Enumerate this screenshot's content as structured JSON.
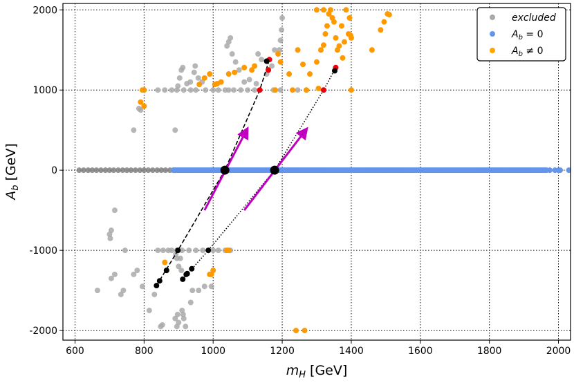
{
  "chart_data": {
    "type": "scatter",
    "xlabel_main": "m",
    "xlabel_sub": "H",
    "xlabel_unit": " [GeV]",
    "ylabel_main": "A",
    "ylabel_sub": "b",
    "ylabel_unit": " [GeV]",
    "xlim": [
      565,
      2035
    ],
    "ylim": [
      -2120,
      2080
    ],
    "x_ticks": [
      600,
      800,
      1000,
      1200,
      1400,
      1600,
      1800,
      2000
    ],
    "y_ticks": [
      -2000,
      -1000,
      0,
      1000,
      2000
    ],
    "x_tick_labels": [
      "600",
      "800",
      "1000",
      "1200",
      "1400",
      "1600",
      "1800",
      "2000"
    ],
    "y_tick_labels": [
      "-2000",
      "-1000",
      "0",
      "1000",
      "2000"
    ],
    "grid": true,
    "grid_style": "dotted",
    "legend": {
      "position": "top-right",
      "entries": [
        {
          "label": "excluded",
          "color": "#a9a9a9"
        },
        {
          "label_main": "A",
          "label_sub": "b",
          "label_rest": " = 0",
          "color": "#6495ed"
        },
        {
          "label_main": "A",
          "label_sub": "b",
          "label_rest": " ≠ 0",
          "color": "#ffa500"
        }
      ]
    },
    "colors": {
      "excluded": "#a9a9a9",
      "excluded_dark": "#808080",
      "ab_zero": "#6495ed",
      "ab_nonzero": "#ff9900",
      "red": "#e8000b",
      "black": "#000000",
      "magenta": "#c000c0"
    },
    "series": [
      {
        "name": "excluded",
        "color": "#a9a9a9",
        "points": [
          [
            612,
            0
          ],
          [
            625,
            0
          ],
          [
            638,
            0
          ],
          [
            650,
            0
          ],
          [
            662,
            0
          ],
          [
            675,
            0
          ],
          [
            688,
            0
          ],
          [
            700,
            0
          ],
          [
            712,
            0
          ],
          [
            725,
            0
          ],
          [
            738,
            0
          ],
          [
            750,
            0
          ],
          [
            762,
            0
          ],
          [
            775,
            0
          ],
          [
            788,
            0
          ],
          [
            800,
            0
          ],
          [
            812,
            0
          ],
          [
            825,
            0
          ],
          [
            838,
            0
          ],
          [
            850,
            0
          ],
          [
            862,
            0
          ],
          [
            875,
            0
          ],
          [
            885,
            0
          ],
          [
            840,
            1000
          ],
          [
            860,
            1000
          ],
          [
            880,
            1000
          ],
          [
            895,
            1000
          ],
          [
            915,
            1000
          ],
          [
            935,
            1000
          ],
          [
            950,
            1000
          ],
          [
            1000,
            1000
          ],
          [
            1015,
            1000
          ],
          [
            1035,
            1000
          ],
          [
            1045,
            1000
          ],
          [
            1060,
            1000
          ],
          [
            1080,
            1000
          ],
          [
            1100,
            1000
          ],
          [
            1120,
            1000
          ],
          [
            1175,
            1000
          ],
          [
            1195,
            1000
          ],
          [
            1245,
            1000
          ],
          [
            1270,
            1000
          ],
          [
            840,
            -1000
          ],
          [
            855,
            -1000
          ],
          [
            870,
            -1000
          ],
          [
            880,
            -1000
          ],
          [
            895,
            -1000
          ],
          [
            910,
            -1000
          ],
          [
            930,
            -1000
          ],
          [
            950,
            -1000
          ],
          [
            970,
            -1000
          ],
          [
            1000,
            -1000
          ],
          [
            1015,
            -1000
          ],
          [
            1035,
            -1000
          ],
          [
            1050,
            -1000
          ],
          [
            898,
            1050
          ],
          [
            903,
            1150
          ],
          [
            908,
            1250
          ],
          [
            912,
            1280
          ],
          [
            924,
            1080
          ],
          [
            934,
            1100
          ],
          [
            945,
            1220
          ],
          [
            948,
            1300
          ],
          [
            957,
            1150
          ],
          [
            968,
            1100
          ],
          [
            978,
            1000
          ],
          [
            1040,
            1550
          ],
          [
            1045,
            1600
          ],
          [
            1050,
            1650
          ],
          [
            1055,
            1450
          ],
          [
            1065,
            1350
          ],
          [
            1075,
            1250
          ],
          [
            1090,
            1100
          ],
          [
            1105,
            1130
          ],
          [
            1125,
            1080
          ],
          [
            1130,
            1450
          ],
          [
            1140,
            1380
          ],
          [
            1155,
            1200
          ],
          [
            1170,
            1300
          ],
          [
            1178,
            1500
          ],
          [
            1192,
            1500
          ],
          [
            1195,
            1620
          ],
          [
            1198,
            1750
          ],
          [
            1200,
            1900
          ],
          [
            770,
            500
          ],
          [
            790,
            750
          ],
          [
            785,
            770
          ],
          [
            890,
            500
          ],
          [
            665,
            -1500
          ],
          [
            715,
            -500
          ],
          [
            700,
            -800
          ],
          [
            702,
            -850
          ],
          [
            705,
            -750
          ],
          [
            705,
            -1350
          ],
          [
            715,
            -1300
          ],
          [
            733,
            -1550
          ],
          [
            740,
            -1500
          ],
          [
            745,
            -1000
          ],
          [
            770,
            -1300
          ],
          [
            780,
            -1250
          ],
          [
            795,
            -1450
          ],
          [
            815,
            -1750
          ],
          [
            830,
            -1550
          ],
          [
            848,
            -1950
          ],
          [
            853,
            -1930
          ],
          [
            890,
            -1850
          ],
          [
            895,
            -1950
          ],
          [
            897,
            -1800
          ],
          [
            900,
            -1900
          ],
          [
            910,
            -1750
          ],
          [
            913,
            -1800
          ],
          [
            915,
            -1850
          ],
          [
            920,
            -1950
          ],
          [
            935,
            -1650
          ],
          [
            940,
            -1500
          ],
          [
            958,
            -1500
          ],
          [
            975,
            -1450
          ],
          [
            995,
            -1450
          ],
          [
            892,
            -1050
          ],
          [
            895,
            -1100
          ],
          [
            900,
            -1200
          ],
          [
            905,
            -1100
          ],
          [
            908,
            -1250
          ]
        ]
      },
      {
        "name": "A_b = 0",
        "color": "#6495ed",
        "x_range": [
          885,
          2030
        ],
        "y": 0,
        "points": [
          [
            1975,
            0
          ],
          [
            1990,
            0
          ],
          [
            2000,
            0
          ],
          [
            2005,
            0
          ],
          [
            2030,
            0
          ]
        ]
      },
      {
        "name": "A_b != 0",
        "color": "#ff9900",
        "points": [
          [
            960,
            1070
          ],
          [
            975,
            1150
          ],
          [
            990,
            1200
          ],
          [
            1005,
            1070
          ],
          [
            1012,
            1080
          ],
          [
            1023,
            1100
          ],
          [
            1045,
            1200
          ],
          [
            1062,
            1220
          ],
          [
            1090,
            1280
          ],
          [
            1112,
            1250
          ],
          [
            1120,
            1300
          ],
          [
            1180,
            1000
          ],
          [
            1188,
            1450
          ],
          [
            1195,
            1350
          ],
          [
            1220,
            1200
          ],
          [
            1230,
            1000
          ],
          [
            1245,
            1500
          ],
          [
            1260,
            1320
          ],
          [
            1270,
            1000
          ],
          [
            1280,
            1200
          ],
          [
            1300,
            1350
          ],
          [
            1305,
            1020
          ],
          [
            1312,
            1500
          ],
          [
            1320,
            1560
          ],
          [
            1325,
            1700
          ],
          [
            1330,
            1800
          ],
          [
            1335,
            1950
          ],
          [
            1340,
            2000
          ],
          [
            1345,
            1900
          ],
          [
            1350,
            1850
          ],
          [
            1355,
            1650
          ],
          [
            1360,
            1500
          ],
          [
            1365,
            1550
          ],
          [
            1372,
            1800
          ],
          [
            1375,
            1400
          ],
          [
            1380,
            1600
          ],
          [
            1385,
            2000
          ],
          [
            1392,
            1700
          ],
          [
            1395,
            1900
          ],
          [
            1398,
            1680
          ],
          [
            1400,
            1650
          ],
          [
            1400,
            1000
          ],
          [
            1320,
            2000
          ],
          [
            1300,
            2000
          ],
          [
            1460,
            1500
          ],
          [
            1485,
            1750
          ],
          [
            1495,
            1850
          ],
          [
            1505,
            1950
          ],
          [
            1510,
            1940
          ],
          [
            795,
            1000
          ],
          [
            800,
            1000
          ],
          [
            790,
            850
          ],
          [
            800,
            800
          ],
          [
            860,
            -1150
          ],
          [
            865,
            -1250
          ],
          [
            990,
            -1300
          ],
          [
            995,
            -1300
          ],
          [
            1000,
            -1250
          ],
          [
            1040,
            -1000
          ],
          [
            1045,
            -1000
          ],
          [
            1240,
            -2000
          ],
          [
            1265,
            -2000
          ]
        ]
      },
      {
        "name": "red",
        "color": "#e8000b",
        "points": [
          [
            1135,
            1000
          ],
          [
            1160,
            1250
          ],
          [
            1163,
            1380
          ],
          [
            1320,
            1000
          ],
          [
            1355,
            1280
          ]
        ]
      },
      {
        "name": "black",
        "color": "#000000",
        "points": [
          [
            836,
            -1440
          ],
          [
            845,
            -1380
          ],
          [
            865,
            -1250
          ],
          [
            898,
            -1000
          ],
          [
            986,
            -1000
          ],
          [
            922,
            -1300
          ],
          [
            912,
            -1360
          ],
          [
            925,
            -1290
          ],
          [
            938,
            -1230
          ],
          [
            1352,
            1240
          ],
          [
            1155,
            1360
          ]
        ]
      }
    ],
    "lines": [
      {
        "name": "dashed-line",
        "style": "dashed",
        "color": "#000000",
        "points": [
          [
            836,
            -1440
          ],
          [
            898,
            -1000
          ],
          [
            1034,
            0
          ],
          [
            1135,
            1000
          ],
          [
            1163,
            1380
          ]
        ]
      },
      {
        "name": "dotted-line",
        "style": "dotted",
        "color": "#000000",
        "points": [
          [
            912,
            -1360
          ],
          [
            986,
            -1000
          ],
          [
            1178,
            0
          ],
          [
            1320,
            1000
          ],
          [
            1355,
            1280
          ]
        ]
      }
    ],
    "big_points": [
      [
        1034,
        0
      ],
      [
        1178,
        0
      ]
    ],
    "arrows": [
      {
        "name": "arrow-left",
        "color": "#c000c0",
        "from": [
          975,
          -500
        ],
        "to": [
          1097,
          500
        ]
      },
      {
        "name": "arrow-right",
        "color": "#c000c0",
        "from": [
          1090,
          -500
        ],
        "to": [
          1268,
          500
        ]
      }
    ]
  }
}
